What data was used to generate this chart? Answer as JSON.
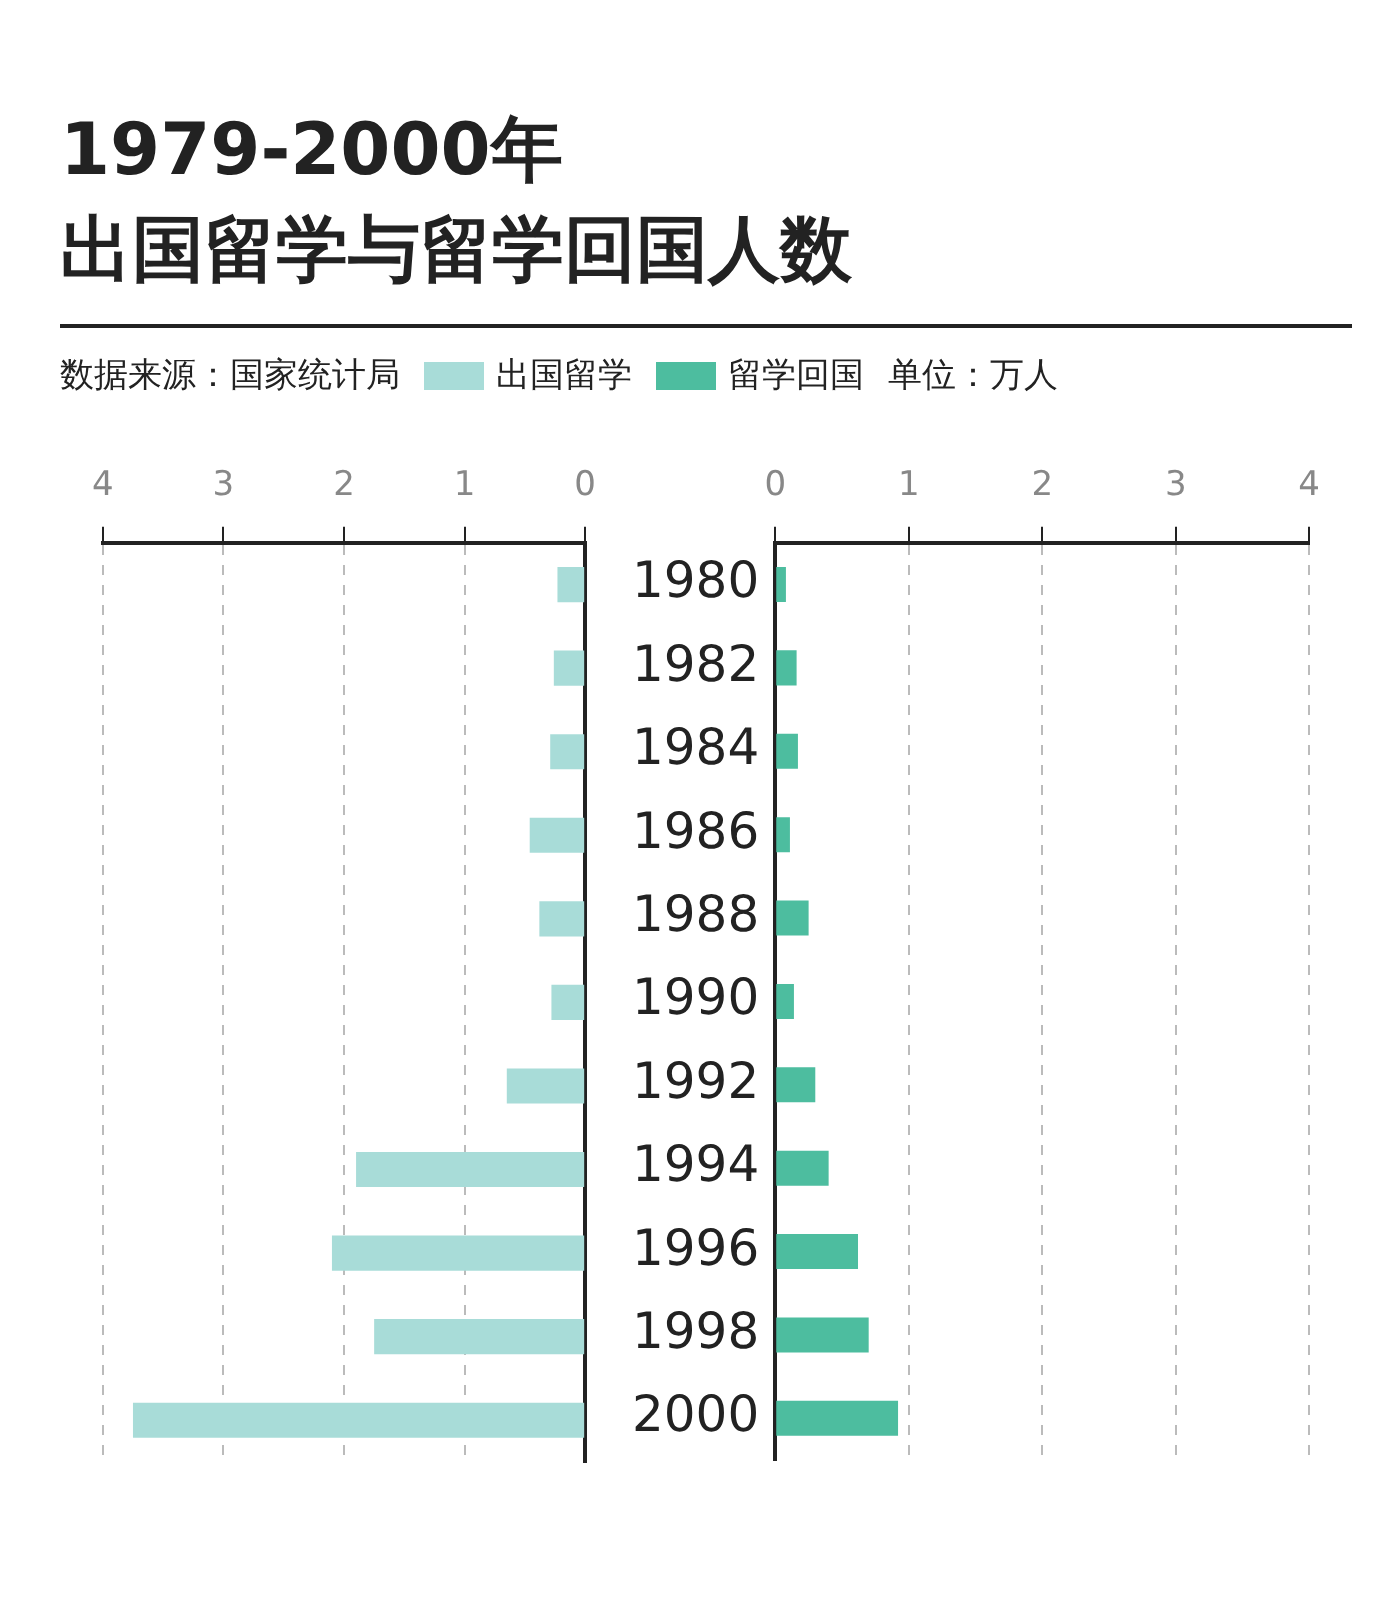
{
  "chart_data": [
    {
      "type": "bar",
      "orientation": "horizontal",
      "title": "1979-2000年",
      "subtitle": "出国留学与留学回国人数",
      "annotations": [
        "数据来源：国家统计局",
        "单位：万人"
      ],
      "categories": [
        "1980",
        "1982",
        "1984",
        "1986",
        "1988",
        "1990",
        "1992",
        "1994",
        "1996",
        "1998",
        "2000"
      ],
      "series": [
        {
          "name": "出国留学",
          "color": "#a8dcd8",
          "values": [
            0.23,
            0.26,
            0.29,
            0.46,
            0.38,
            0.28,
            0.65,
            1.9,
            2.1,
            1.75,
            3.75
          ]
        }
      ],
      "xlim": [
        4,
        0
      ],
      "xticks": [
        4,
        3,
        2,
        1,
        0
      ],
      "grid": "x",
      "legend": "top",
      "tick_labels": "x"
    },
    {
      "type": "bar",
      "orientation": "horizontal",
      "categories": [
        "1980",
        "1982",
        "1984",
        "1986",
        "1988",
        "1990",
        "1992",
        "1994",
        "1996",
        "1998",
        "2000"
      ],
      "series": [
        {
          "name": "留学回国",
          "color": "#4dbd9f",
          "values": [
            0.08,
            0.16,
            0.17,
            0.11,
            0.25,
            0.14,
            0.3,
            0.4,
            0.62,
            0.7,
            0.92
          ]
        }
      ],
      "xlim": [
        0,
        4
      ],
      "xticks": [
        0,
        1,
        2,
        3,
        4
      ],
      "grid": "x",
      "legend": "top"
    }
  ]
}
